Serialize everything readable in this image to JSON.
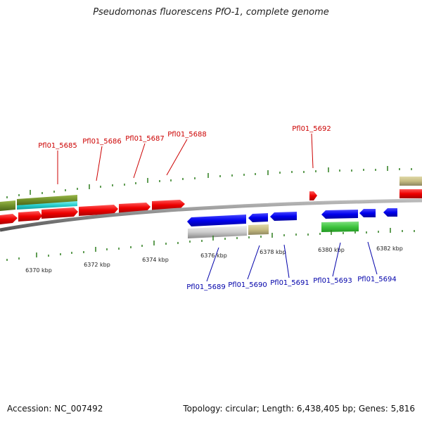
{
  "title": "Pseudomonas fluorescens PfO-1, complete genome",
  "footer": {
    "accession": "Accession: NC_007492",
    "summary": "Topology: circular; Length: 6,438,405 bp; Genes: 5,816"
  },
  "colors": {
    "forward_label": "#cc0000",
    "reverse_label": "#0000aa",
    "backbone": "#888888",
    "ticks": "#2e7d1e"
  },
  "scale_labels": [
    "6370 kbp",
    "6372 kbp",
    "6374 kbp",
    "6376 kbp",
    "6378 kbp",
    "6380 kbp",
    "6382 kbp"
  ],
  "forward_gene_labels": [
    "Pfl01_5685",
    "Pfl01_5686",
    "Pfl01_5687",
    "Pfl01_5688",
    "Pfl01_5692"
  ],
  "reverse_gene_labels": [
    "Pfl01_5689",
    "Pfl01_5690",
    "Pfl01_5691",
    "Pfl01_5693",
    "Pfl01_5694"
  ]
}
